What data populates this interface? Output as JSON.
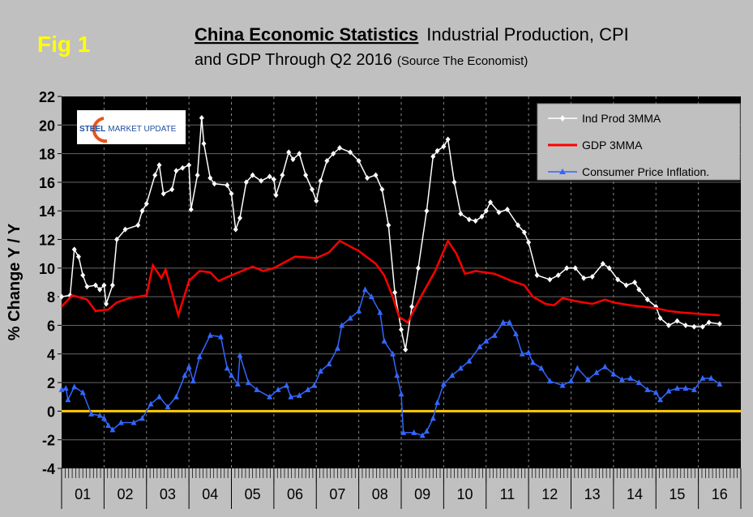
{
  "figure_label": "Fig 1",
  "title_bold": "China Economic Statistics",
  "title_rest": "Industrial Production, CPI",
  "title_line2": "and GDP Through Q2 2016",
  "title_source": "(Source The Economist)",
  "logo_text": {
    "steel": "STEEL",
    "rest": "MARKET UPDATE"
  },
  "colors": {
    "background": "#c0c0c0",
    "plot": "#000000",
    "ind_prod": "#ffffff",
    "gdp": "#ff0000",
    "cpi": "#3366ff",
    "zero_line": "#ffcc00"
  },
  "chart_data": {
    "type": "line",
    "ylabel": "% Change Y / Y",
    "xlabel": "",
    "ylim": [
      -4,
      22
    ],
    "yticks": [
      "22",
      "20",
      "18",
      "16",
      "14",
      "12",
      "10",
      "8",
      "6",
      "4",
      "2",
      "0",
      "-2",
      "-4"
    ],
    "xlim": [
      2001,
      2017
    ],
    "xtick_labels": [
      "01",
      "02",
      "03",
      "04",
      "05",
      "06",
      "07",
      "08",
      "09",
      "10",
      "11",
      "12",
      "13",
      "14",
      "15",
      "16"
    ],
    "grid": "horizontal solid, vertical dashed at years",
    "legend_placement": "top-right",
    "reference_line": 0,
    "series": [
      {
        "name": "Ind Prod 3MMA",
        "marker": "diamond",
        "points": [
          [
            2001.0,
            8
          ],
          [
            2001.2,
            8.1
          ],
          [
            2001.3,
            11.3
          ],
          [
            2001.4,
            10.8
          ],
          [
            2001.5,
            9.5
          ],
          [
            2001.6,
            8.7
          ],
          [
            2001.8,
            8.8
          ],
          [
            2001.9,
            8.5
          ],
          [
            2002.0,
            8.8
          ],
          [
            2002.05,
            7.5
          ],
          [
            2002.2,
            8.8
          ],
          [
            2002.3,
            12.0
          ],
          [
            2002.5,
            12.7
          ],
          [
            2002.8,
            13.0
          ],
          [
            2002.9,
            14.0
          ],
          [
            2003.0,
            14.5
          ],
          [
            2003.2,
            16.5
          ],
          [
            2003.3,
            17.2
          ],
          [
            2003.4,
            15.2
          ],
          [
            2003.6,
            15.5
          ],
          [
            2003.7,
            16.8
          ],
          [
            2003.85,
            17.0
          ],
          [
            2004.0,
            17.2
          ],
          [
            2004.05,
            14.1
          ],
          [
            2004.2,
            16.5
          ],
          [
            2004.3,
            20.5
          ],
          [
            2004.35,
            18.7
          ],
          [
            2004.5,
            16.3
          ],
          [
            2004.6,
            15.9
          ],
          [
            2004.9,
            15.8
          ],
          [
            2005.0,
            15.2
          ],
          [
            2005.1,
            12.7
          ],
          [
            2005.2,
            13.5
          ],
          [
            2005.35,
            16.0
          ],
          [
            2005.5,
            16.5
          ],
          [
            2005.7,
            16.1
          ],
          [
            2005.9,
            16.4
          ],
          [
            2006.0,
            16.2
          ],
          [
            2006.05,
            15.1
          ],
          [
            2006.2,
            16.5
          ],
          [
            2006.35,
            18.1
          ],
          [
            2006.45,
            17.6
          ],
          [
            2006.6,
            18.0
          ],
          [
            2006.75,
            16.5
          ],
          [
            2006.9,
            15.5
          ],
          [
            2007.0,
            14.7
          ],
          [
            2007.1,
            16.1
          ],
          [
            2007.25,
            17.5
          ],
          [
            2007.4,
            18.0
          ],
          [
            2007.55,
            18.4
          ],
          [
            2007.8,
            18.1
          ],
          [
            2008.0,
            17.5
          ],
          [
            2008.2,
            16.3
          ],
          [
            2008.4,
            16.5
          ],
          [
            2008.55,
            15.5
          ],
          [
            2008.7,
            13.0
          ],
          [
            2008.85,
            8.3
          ],
          [
            2009.0,
            5.7
          ],
          [
            2009.1,
            4.3
          ],
          [
            2009.25,
            7.3
          ],
          [
            2009.4,
            10.0
          ],
          [
            2009.6,
            14.0
          ],
          [
            2009.75,
            17.8
          ],
          [
            2009.85,
            18.2
          ],
          [
            2010.0,
            18.5
          ],
          [
            2010.1,
            19.0
          ],
          [
            2010.25,
            16.0
          ],
          [
            2010.4,
            13.8
          ],
          [
            2010.6,
            13.4
          ],
          [
            2010.75,
            13.3
          ],
          [
            2010.9,
            13.6
          ],
          [
            2011.0,
            14.0
          ],
          [
            2011.1,
            14.6
          ],
          [
            2011.3,
            13.9
          ],
          [
            2011.5,
            14.1
          ],
          [
            2011.75,
            13.0
          ],
          [
            2011.9,
            12.5
          ],
          [
            2012.0,
            11.8
          ],
          [
            2012.2,
            9.5
          ],
          [
            2012.5,
            9.2
          ],
          [
            2012.7,
            9.5
          ],
          [
            2012.9,
            10.0
          ],
          [
            2013.1,
            10.0
          ],
          [
            2013.3,
            9.3
          ],
          [
            2013.5,
            9.4
          ],
          [
            2013.75,
            10.3
          ],
          [
            2013.9,
            10.0
          ],
          [
            2014.1,
            9.2
          ],
          [
            2014.3,
            8.8
          ],
          [
            2014.5,
            9.0
          ],
          [
            2014.6,
            8.5
          ],
          [
            2014.8,
            7.8
          ],
          [
            2015.0,
            7.3
          ],
          [
            2015.1,
            6.5
          ],
          [
            2015.3,
            6.0
          ],
          [
            2015.5,
            6.3
          ],
          [
            2015.7,
            6.0
          ],
          [
            2015.9,
            5.9
          ],
          [
            2016.1,
            5.9
          ],
          [
            2016.25,
            6.2
          ],
          [
            2016.5,
            6.1
          ]
        ]
      },
      {
        "name": "GDP 3MMA",
        "marker": "none",
        "points": [
          [
            2001.0,
            7.3
          ],
          [
            2001.25,
            8.1
          ],
          [
            2001.6,
            7.8
          ],
          [
            2001.8,
            7.0
          ],
          [
            2002.1,
            7.1
          ],
          [
            2002.3,
            7.6
          ],
          [
            2002.6,
            7.9
          ],
          [
            2003.0,
            8.1
          ],
          [
            2003.15,
            10.2
          ],
          [
            2003.35,
            9.3
          ],
          [
            2003.45,
            9.9
          ],
          [
            2003.75,
            6.7
          ],
          [
            2004.0,
            9.1
          ],
          [
            2004.25,
            9.8
          ],
          [
            2004.5,
            9.7
          ],
          [
            2004.7,
            9.1
          ],
          [
            2005.0,
            9.5
          ],
          [
            2005.5,
            10.1
          ],
          [
            2005.75,
            9.8
          ],
          [
            2006.0,
            10.0
          ],
          [
            2006.5,
            10.8
          ],
          [
            2007.0,
            10.7
          ],
          [
            2007.3,
            11.1
          ],
          [
            2007.55,
            11.9
          ],
          [
            2008.0,
            11.2
          ],
          [
            2008.4,
            10.3
          ],
          [
            2008.6,
            9.5
          ],
          [
            2008.8,
            8.0
          ],
          [
            2008.95,
            6.6
          ],
          [
            2009.15,
            6.2
          ],
          [
            2009.5,
            8.2
          ],
          [
            2009.8,
            9.8
          ],
          [
            2010.1,
            11.9
          ],
          [
            2010.3,
            11.0
          ],
          [
            2010.5,
            9.6
          ],
          [
            2010.75,
            9.8
          ],
          [
            2011.2,
            9.6
          ],
          [
            2011.6,
            9.1
          ],
          [
            2011.9,
            8.8
          ],
          [
            2012.1,
            8.0
          ],
          [
            2012.4,
            7.5
          ],
          [
            2012.6,
            7.4
          ],
          [
            2012.8,
            7.9
          ],
          [
            2013.1,
            7.7
          ],
          [
            2013.5,
            7.5
          ],
          [
            2013.8,
            7.8
          ],
          [
            2014.0,
            7.6
          ],
          [
            2014.4,
            7.4
          ],
          [
            2014.7,
            7.3
          ],
          [
            2015.0,
            7.2
          ],
          [
            2015.3,
            7.0
          ],
          [
            2015.6,
            6.9
          ],
          [
            2016.0,
            6.8
          ],
          [
            2016.5,
            6.7
          ]
        ]
      },
      {
        "name": "Consumer Price Inflation.",
        "marker": "triangle",
        "points": [
          [
            2001.0,
            1.5
          ],
          [
            2001.1,
            1.6
          ],
          [
            2001.15,
            0.8
          ],
          [
            2001.3,
            1.7
          ],
          [
            2001.5,
            1.3
          ],
          [
            2001.7,
            -0.2
          ],
          [
            2001.9,
            -0.3
          ],
          [
            2002.0,
            -0.5
          ],
          [
            2002.1,
            -1.0
          ],
          [
            2002.2,
            -1.3
          ],
          [
            2002.4,
            -0.8
          ],
          [
            2002.7,
            -0.8
          ],
          [
            2002.9,
            -0.5
          ],
          [
            2003.1,
            0.5
          ],
          [
            2003.3,
            1.0
          ],
          [
            2003.5,
            0.3
          ],
          [
            2003.7,
            1.0
          ],
          [
            2003.9,
            2.5
          ],
          [
            2004.0,
            3.1
          ],
          [
            2004.1,
            2.1
          ],
          [
            2004.25,
            3.8
          ],
          [
            2004.5,
            5.3
          ],
          [
            2004.75,
            5.2
          ],
          [
            2004.9,
            3.0
          ],
          [
            2005.0,
            2.5
          ],
          [
            2005.15,
            1.9
          ],
          [
            2005.2,
            3.9
          ],
          [
            2005.4,
            2.0
          ],
          [
            2005.6,
            1.5
          ],
          [
            2005.9,
            1.0
          ],
          [
            2006.1,
            1.5
          ],
          [
            2006.3,
            1.8
          ],
          [
            2006.4,
            1.0
          ],
          [
            2006.6,
            1.1
          ],
          [
            2006.8,
            1.5
          ],
          [
            2006.95,
            1.8
          ],
          [
            2007.1,
            2.8
          ],
          [
            2007.3,
            3.3
          ],
          [
            2007.5,
            4.4
          ],
          [
            2007.6,
            6.0
          ],
          [
            2007.8,
            6.5
          ],
          [
            2008.0,
            7.0
          ],
          [
            2008.15,
            8.5
          ],
          [
            2008.3,
            8.0
          ],
          [
            2008.5,
            6.9
          ],
          [
            2008.6,
            4.9
          ],
          [
            2008.8,
            4.0
          ],
          [
            2008.9,
            2.5
          ],
          [
            2009.0,
            1.2
          ],
          [
            2009.05,
            -1.5
          ],
          [
            2009.3,
            -1.5
          ],
          [
            2009.5,
            -1.7
          ],
          [
            2009.6,
            -1.4
          ],
          [
            2009.75,
            -0.5
          ],
          [
            2009.85,
            0.6
          ],
          [
            2010.0,
            1.9
          ],
          [
            2010.2,
            2.5
          ],
          [
            2010.4,
            3.0
          ],
          [
            2010.6,
            3.5
          ],
          [
            2010.85,
            4.5
          ],
          [
            2011.0,
            4.9
          ],
          [
            2011.2,
            5.3
          ],
          [
            2011.4,
            6.2
          ],
          [
            2011.55,
            6.2
          ],
          [
            2011.7,
            5.4
          ],
          [
            2011.85,
            4.0
          ],
          [
            2012.0,
            4.1
          ],
          [
            2012.1,
            3.4
          ],
          [
            2012.3,
            3.0
          ],
          [
            2012.5,
            2.1
          ],
          [
            2012.8,
            1.8
          ],
          [
            2013.0,
            2.1
          ],
          [
            2013.15,
            3.0
          ],
          [
            2013.4,
            2.2
          ],
          [
            2013.6,
            2.7
          ],
          [
            2013.8,
            3.1
          ],
          [
            2014.0,
            2.6
          ],
          [
            2014.2,
            2.2
          ],
          [
            2014.4,
            2.3
          ],
          [
            2014.6,
            2.0
          ],
          [
            2014.8,
            1.5
          ],
          [
            2015.0,
            1.3
          ],
          [
            2015.1,
            0.8
          ],
          [
            2015.3,
            1.4
          ],
          [
            2015.5,
            1.6
          ],
          [
            2015.7,
            1.6
          ],
          [
            2015.9,
            1.5
          ],
          [
            2016.1,
            2.3
          ],
          [
            2016.3,
            2.3
          ],
          [
            2016.5,
            1.9
          ]
        ]
      }
    ]
  }
}
